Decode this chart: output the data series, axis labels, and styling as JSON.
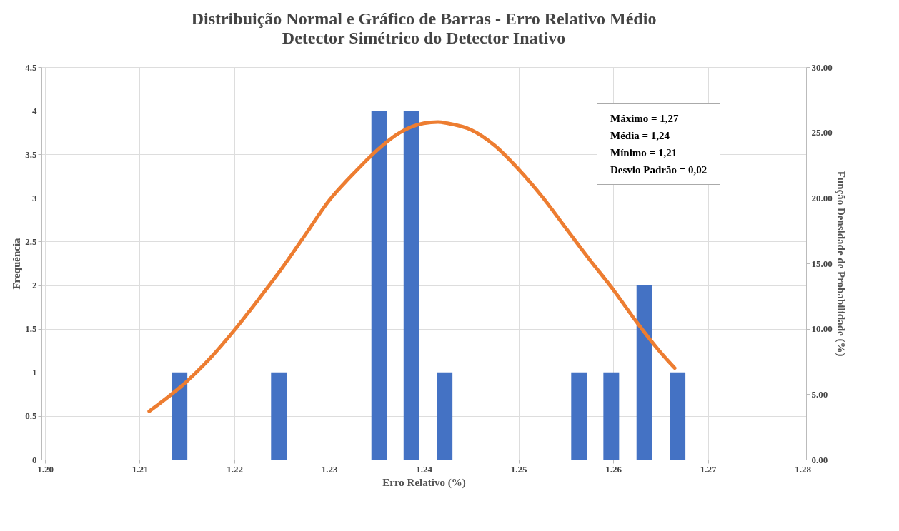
{
  "chart_data": {
    "type": "bar",
    "title": "Distribuição Normal e Gráfico de Barras - Erro Relativo Médio",
    "subtitle": "Detector Simétrico do Detector Inativo",
    "xlabel": "Erro Relativo (%)",
    "ylabel": "Frequência",
    "y2label": "Função Densidade de Probabilidade (%)",
    "annotations": [
      "Máximo = 1,27",
      "Média = 1,24",
      "Mínimo = 1,21",
      "Desvio Padrão = 0,02"
    ],
    "series": [
      {
        "color": "#4472c4",
        "x": [
          1.2142,
          1.2247,
          1.2353,
          1.2387,
          1.2422,
          1.2564,
          1.2598,
          1.2633,
          1.2668
        ],
        "values": [
          1,
          1,
          4,
          4,
          1,
          1,
          1,
          2,
          1
        ]
      },
      {
        "type": "line",
        "axis": "y2",
        "color": "#ed7d31",
        "x": [
          1.211,
          1.215,
          1.2175,
          1.22,
          1.2225,
          1.225,
          1.2275,
          1.23,
          1.2325,
          1.235,
          1.2375,
          1.24,
          1.2415,
          1.2425,
          1.245,
          1.2475,
          1.25,
          1.2525,
          1.255,
          1.2575,
          1.26,
          1.2625,
          1.265,
          1.2665
        ],
        "values": [
          3.7,
          6.0,
          7.8,
          9.9,
          12.2,
          14.6,
          17.2,
          19.8,
          21.8,
          23.6,
          25.0,
          25.7,
          25.8,
          25.7,
          25.2,
          24.0,
          22.2,
          20.1,
          17.7,
          15.3,
          13.0,
          10.5,
          8.2,
          7.0
        ]
      }
    ],
    "xlim": [
      1.2,
      1.28
    ],
    "xticks": [
      {
        "value": 1.2,
        "label": "1.20"
      },
      {
        "value": 1.21,
        "label": "1.21"
      },
      {
        "value": 1.22,
        "label": "1.22"
      },
      {
        "value": 1.23,
        "label": "1.23"
      },
      {
        "value": 1.24,
        "label": "1.24"
      },
      {
        "value": 1.25,
        "label": "1.25"
      },
      {
        "value": 1.26,
        "label": "1.26"
      },
      {
        "value": 1.27,
        "label": "1.27"
      },
      {
        "value": 1.28,
        "label": "1.28"
      }
    ],
    "ylim": [
      0,
      4.5
    ],
    "yticks": [
      0,
      0.5,
      1,
      1.5,
      2,
      2.5,
      3,
      3.5,
      4,
      4.5
    ],
    "y2lim": [
      0,
      30
    ],
    "y2ticks": [
      {
        "value": 0,
        "label": "0.00"
      },
      {
        "value": 5,
        "label": "5.00"
      },
      {
        "value": 10,
        "label": "10.00"
      },
      {
        "value": 15,
        "label": "15.00"
      },
      {
        "value": 20,
        "label": "20.00"
      },
      {
        "value": 25,
        "label": "25.00"
      },
      {
        "value": 30,
        "label": "30.00"
      }
    ],
    "grid": true,
    "marker": "none",
    "line_style": "solid"
  }
}
